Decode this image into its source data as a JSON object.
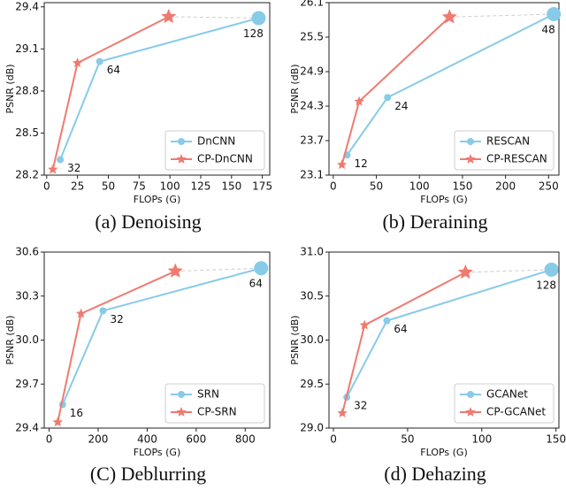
{
  "chart_data": [
    {
      "type": "line",
      "caption": "(a) Denoising",
      "xlabel": "FLOPs (G)",
      "ylabel": "PSNR (dB)",
      "xlim": [
        -2,
        181
      ],
      "ylim": [
        28.2,
        29.43
      ],
      "xticks": [
        0,
        25,
        50,
        75,
        100,
        125,
        150,
        175
      ],
      "yticks": [
        28.2,
        28.5,
        28.8,
        29.1,
        29.4
      ],
      "legend": "lower right",
      "series": [
        {
          "name": "DnCNN",
          "color": "#87cbe8",
          "marker": "circle",
          "x": [
            11,
            43,
            172
          ],
          "values": [
            28.31,
            29.01,
            29.32
          ],
          "point_labels": [
            32,
            64,
            128
          ]
        },
        {
          "name": "CP-DnCNN",
          "color": "#ef7a70",
          "marker": "star",
          "x": [
            5,
            25,
            99
          ],
          "values": [
            28.24,
            29.0,
            29.33
          ]
        }
      ]
    },
    {
      "type": "line",
      "caption": "(b) Deraining",
      "xlabel": "FLOPs (G)",
      "ylabel": "PSNR (dB)",
      "xlim": [
        -5,
        262
      ],
      "ylim": [
        23.1,
        26.1
      ],
      "xticks": [
        0,
        50,
        100,
        150,
        200,
        250
      ],
      "yticks": [
        23.1,
        23.7,
        24.3,
        24.9,
        25.5,
        26.1
      ],
      "legend": "lower right",
      "series": [
        {
          "name": "RESCAN",
          "color": "#87cbe8",
          "marker": "circle",
          "x": [
            16,
            63,
            256
          ],
          "values": [
            23.45,
            24.45,
            25.9
          ],
          "point_labels": [
            12,
            24,
            48
          ]
        },
        {
          "name": "CP-RESCAN",
          "color": "#ef7a70",
          "marker": "star",
          "x": [
            10,
            30,
            135
          ],
          "values": [
            23.28,
            24.38,
            25.85
          ]
        }
      ]
    },
    {
      "type": "line",
      "caption": "(C) Deblurring",
      "xlabel": "FLOPs (G)",
      "ylabel": "PSNR (dB)",
      "xlim": [
        -20,
        900
      ],
      "ylim": [
        29.4,
        30.6
      ],
      "xticks": [
        0,
        200,
        400,
        600,
        800
      ],
      "yticks": [
        29.4,
        29.7,
        {
          "value": 30.0,
          "label": "30.0"
        },
        30.3,
        30.6
      ],
      "legend": "lower right",
      "series": [
        {
          "name": "SRN",
          "color": "#87cbe8",
          "marker": "circle",
          "x": [
            55,
            220,
            865
          ],
          "values": [
            29.56,
            30.2,
            30.49
          ],
          "point_labels": [
            16,
            32,
            64
          ]
        },
        {
          "name": "CP-SRN",
          "color": "#ef7a70",
          "marker": "star",
          "x": [
            35,
            130,
            515
          ],
          "values": [
            29.44,
            30.18,
            30.47
          ]
        }
      ]
    },
    {
      "type": "line",
      "caption": "(d) Dehazing",
      "xlabel": "FLOPs (G)",
      "ylabel": "PSNR (dB)",
      "xlim": [
        -3,
        152
      ],
      "ylim": [
        29.0,
        31.0
      ],
      "xticks": [
        0,
        50,
        100,
        150
      ],
      "yticks": [
        {
          "value": 29.0,
          "label": "29.0"
        },
        29.5,
        {
          "value": 30.0,
          "label": "30.0"
        },
        30.5,
        {
          "value": 31.0,
          "label": "31.0"
        }
      ],
      "legend": "lower right",
      "series": [
        {
          "name": "GCANet",
          "color": "#87cbe8",
          "marker": "circle",
          "x": [
            9,
            36,
            147
          ],
          "values": [
            29.35,
            30.22,
            30.8
          ],
          "point_labels": [
            32,
            64,
            128
          ]
        },
        {
          "name": "CP-GCANet",
          "color": "#ef7a70",
          "marker": "star",
          "x": [
            6,
            21,
            89
          ],
          "values": [
            29.17,
            30.17,
            30.77
          ]
        }
      ]
    }
  ]
}
